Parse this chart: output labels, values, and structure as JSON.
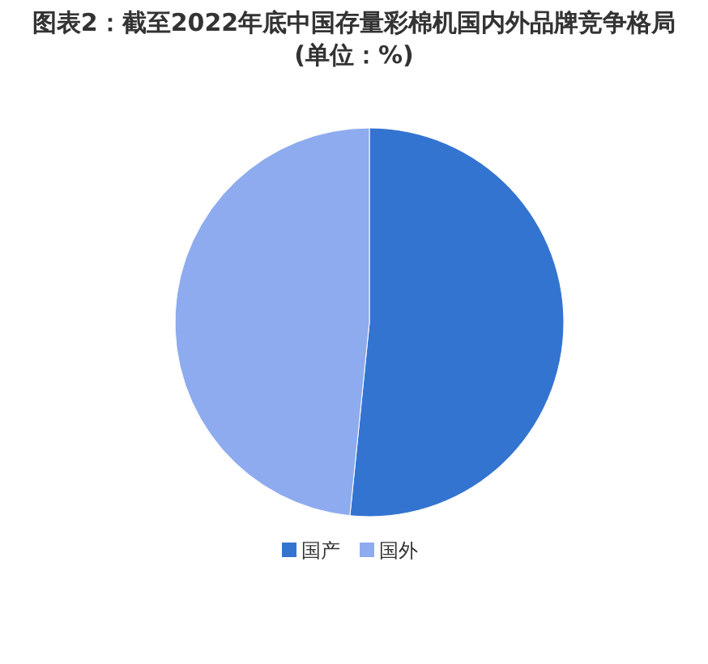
{
  "chart_data": {
    "type": "pie",
    "title": "图表2：截至2022年底中国存量彩棉机国内外品牌竞争格局(单位：%)",
    "categories": [
      "国产",
      "国外"
    ],
    "values": [
      51.6,
      48.4
    ],
    "colors": [
      "#3474d1",
      "#8eabef"
    ],
    "legend": "bottom"
  }
}
